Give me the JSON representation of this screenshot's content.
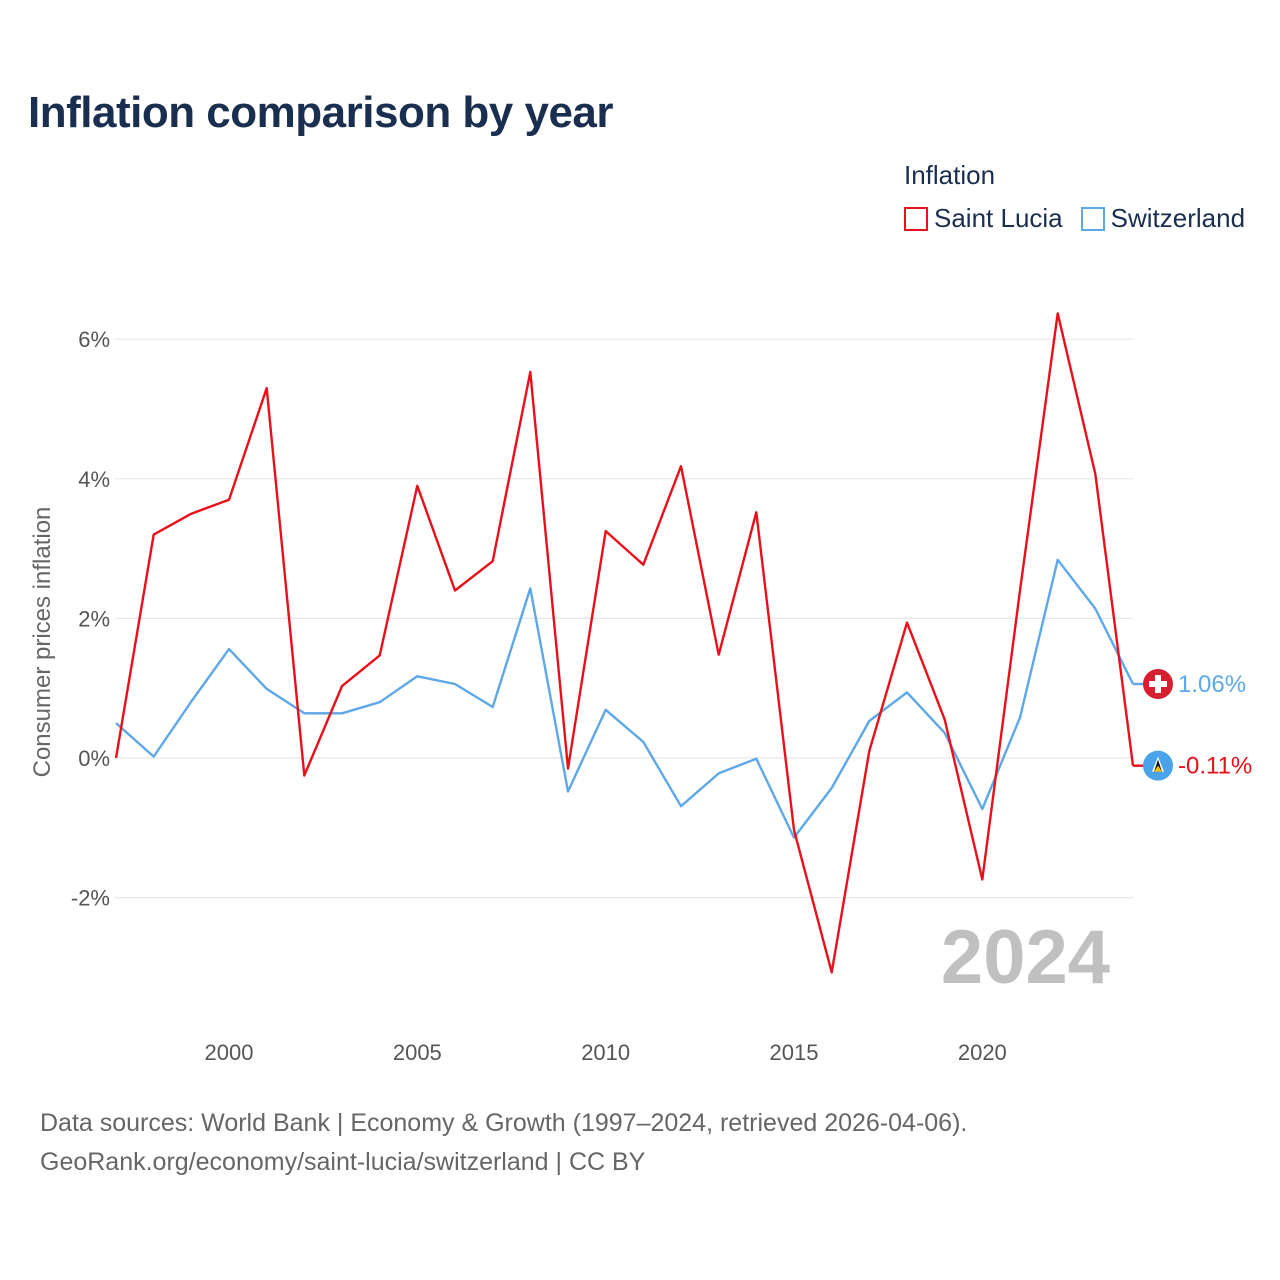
{
  "title": "Inflation comparison by year",
  "legend": {
    "title": "Inflation",
    "items": [
      {
        "name": "Saint Lucia",
        "color": "#e8101a"
      },
      {
        "name": "Switzerland",
        "color": "#5ea8e8"
      }
    ]
  },
  "watermark_year": "2024",
  "flag_icons": {
    "switzerland": "swiss-flag-icon",
    "saint_lucia": "saint-lucia-flag-icon"
  },
  "chart_data": {
    "type": "line",
    "ylabel": "Consumer prices inflation",
    "xlabel": "",
    "x": [
      1997,
      1998,
      1999,
      2000,
      2001,
      2002,
      2003,
      2004,
      2005,
      2006,
      2007,
      2008,
      2009,
      2010,
      2011,
      2012,
      2013,
      2014,
      2015,
      2016,
      2017,
      2018,
      2019,
      2020,
      2021,
      2022,
      2023,
      2024
    ],
    "ylim": [
      -3.5,
      6.5
    ],
    "yticks": [
      -2,
      0,
      2,
      4,
      6
    ],
    "ytick_labels": [
      "-2%",
      "0%",
      "2%",
      "4%",
      "6%"
    ],
    "xticks": [
      2000,
      2005,
      2010,
      2015,
      2020
    ],
    "xtick_labels": [
      "2000",
      "2005",
      "2010",
      "2015",
      "2020"
    ],
    "series": [
      {
        "name": "Saint Lucia",
        "color": "#e8101a",
        "values": [
          0.0,
          3.2,
          3.5,
          3.7,
          5.3,
          -0.25,
          1.03,
          1.47,
          3.9,
          2.4,
          2.82,
          5.53,
          -0.15,
          3.25,
          2.77,
          4.18,
          1.48,
          3.52,
          -1.03,
          -3.07,
          0.1,
          1.94,
          0.55,
          -1.74,
          2.4,
          6.37,
          4.07,
          -0.11
        ],
        "end_label": "-0.11%"
      },
      {
        "name": "Switzerland",
        "color": "#5ea8e8",
        "values": [
          0.5,
          0.02,
          0.81,
          1.56,
          0.99,
          0.64,
          0.64,
          0.8,
          1.17,
          1.06,
          0.73,
          2.43,
          -0.48,
          0.69,
          0.23,
          -0.69,
          -0.22,
          -0.01,
          -1.14,
          -0.43,
          0.53,
          0.94,
          0.36,
          -0.73,
          0.58,
          2.84,
          2.14,
          1.06
        ],
        "end_label": "1.06%"
      }
    ]
  },
  "footer": {
    "line1": "Data sources: World Bank | Economy & Growth (1997–2024, retrieved 2026-04-06).",
    "line2": "GeoRank.org/economy/saint-lucia/switzerland | CC BY"
  }
}
